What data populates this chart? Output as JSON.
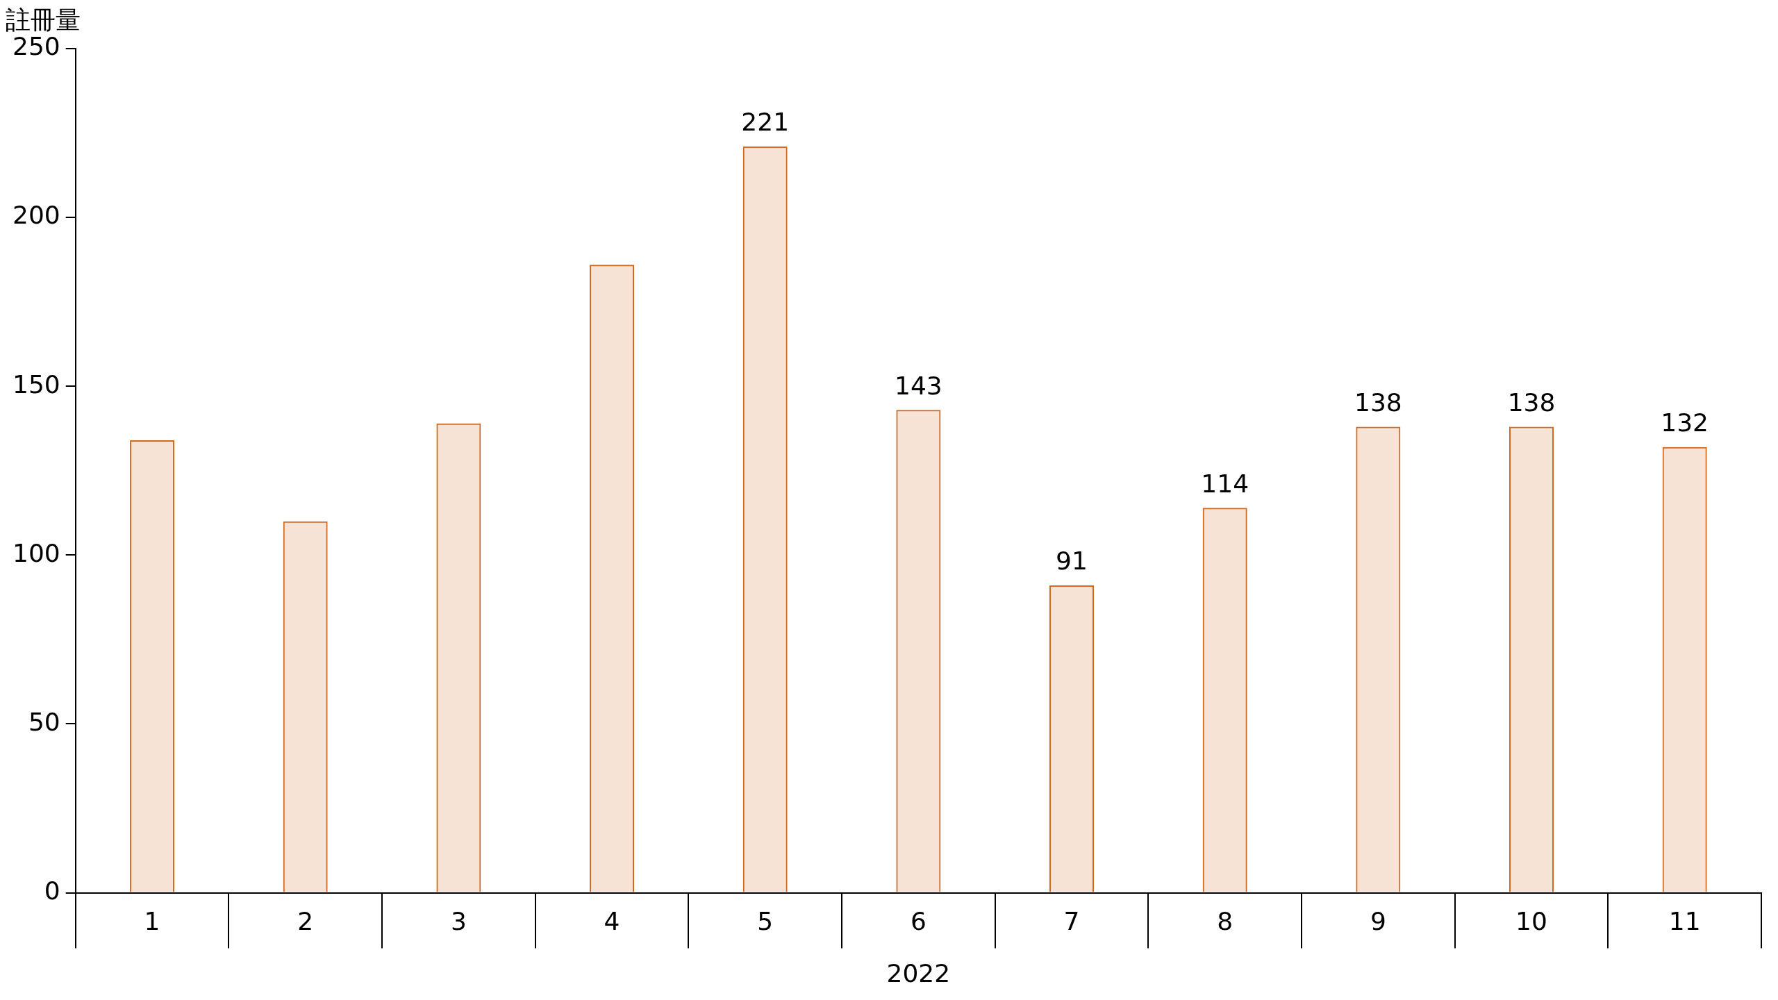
{
  "chart_data": {
    "type": "bar",
    "ylabel": "註冊量",
    "xlabel": "2022",
    "categories": [
      "1",
      "2",
      "3",
      "4",
      "5",
      "6",
      "7",
      "8",
      "9",
      "10",
      "11"
    ],
    "values": [
      134,
      110,
      139,
      186,
      221,
      143,
      91,
      114,
      138,
      138,
      132
    ],
    "value_labels": [
      null,
      null,
      null,
      null,
      "221",
      "143",
      "91",
      "114",
      "138",
      "138",
      "132"
    ],
    "color": "#d2691e",
    "ylim": [
      0,
      250
    ],
    "yticks": [
      0,
      50,
      100,
      150,
      200,
      250
    ],
    "grid": false,
    "legend": false
  }
}
